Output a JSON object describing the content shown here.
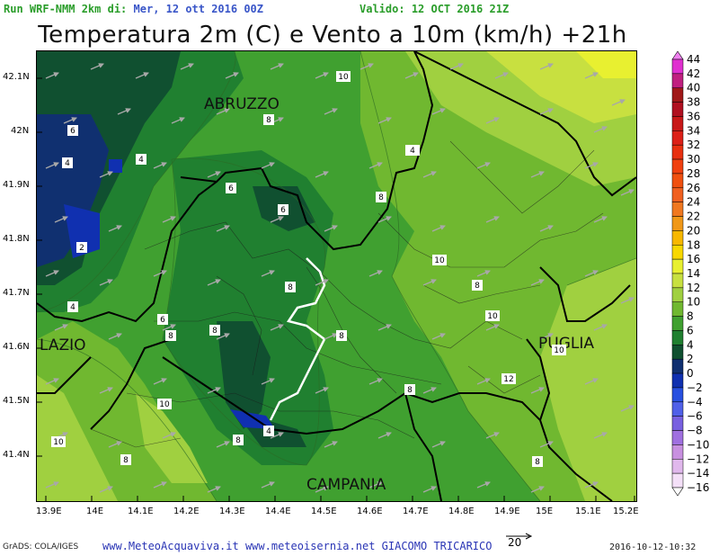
{
  "header": {
    "run_label": "Run WRF-NMM 2km di:",
    "run_date": "Mer, 12 ott 2016 00Z",
    "valid_label": "Valido:",
    "valid_date": "12 OCT 2016 21Z"
  },
  "title": "Temperatura 2m (C) e Vento a 10m (km/h) +21h",
  "axes": {
    "lat_ticks": [
      "42.1N",
      "42N",
      "41.9N",
      "41.8N",
      "41.7N",
      "41.6N",
      "41.5N",
      "41.4N"
    ],
    "lon_ticks": [
      "13.9E",
      "14E",
      "14.1E",
      "14.2E",
      "14.3E",
      "14.4E",
      "14.5E",
      "14.6E",
      "14.7E",
      "14.8E",
      "14.9E",
      "15E",
      "15.1E",
      "15.2E"
    ]
  },
  "regions": [
    "ABRUZZO",
    "LAZIO",
    "PUGLIA",
    "CAMPANIA"
  ],
  "contour_labels": [
    "10",
    "8",
    "6",
    "4",
    "4",
    "4",
    "6",
    "6",
    "2",
    "8",
    "10",
    "8",
    "10",
    "8",
    "4",
    "6",
    "8",
    "8",
    "8",
    "10",
    "8",
    "10",
    "12",
    "10",
    "10",
    "8",
    "4",
    "8",
    "8",
    "10",
    "4",
    "6",
    "8"
  ],
  "colorbar": {
    "levels": [
      "44",
      "42",
      "40",
      "38",
      "36",
      "34",
      "32",
      "30",
      "28",
      "26",
      "24",
      "22",
      "20",
      "18",
      "16",
      "14",
      "12",
      "10",
      "8",
      "6",
      "4",
      "2",
      "0",
      "-2",
      "-4",
      "-6",
      "-8",
      "-10",
      "-12",
      "-14",
      "-16"
    ],
    "colors": [
      "#f080f0",
      "#e030d0",
      "#c02080",
      "#a01818",
      "#b01020",
      "#c81818",
      "#dc2018",
      "#e83010",
      "#f04010",
      "#f05010",
      "#f06020",
      "#f07820",
      "#f09818",
      "#f8b800",
      "#f8d800",
      "#e8f030",
      "#c8e040",
      "#a0d040",
      "#70b830",
      "#40a030",
      "#208030",
      "#105030",
      "#103070",
      "#1030b0",
      "#2850e0",
      "#5060e8",
      "#7860e0",
      "#a070e0",
      "#c890e0",
      "#e0b8ec",
      "#f4e0f8"
    ]
  },
  "wind_scale": {
    "value": "20"
  },
  "footer": {
    "credit": "GrADS: COLA/IGES",
    "sites": "www.MeteoAcquaviva.it www.meteoisernia.net GIACOMO TRICARICO",
    "timestamp": "2016-10-12-10:32"
  }
}
